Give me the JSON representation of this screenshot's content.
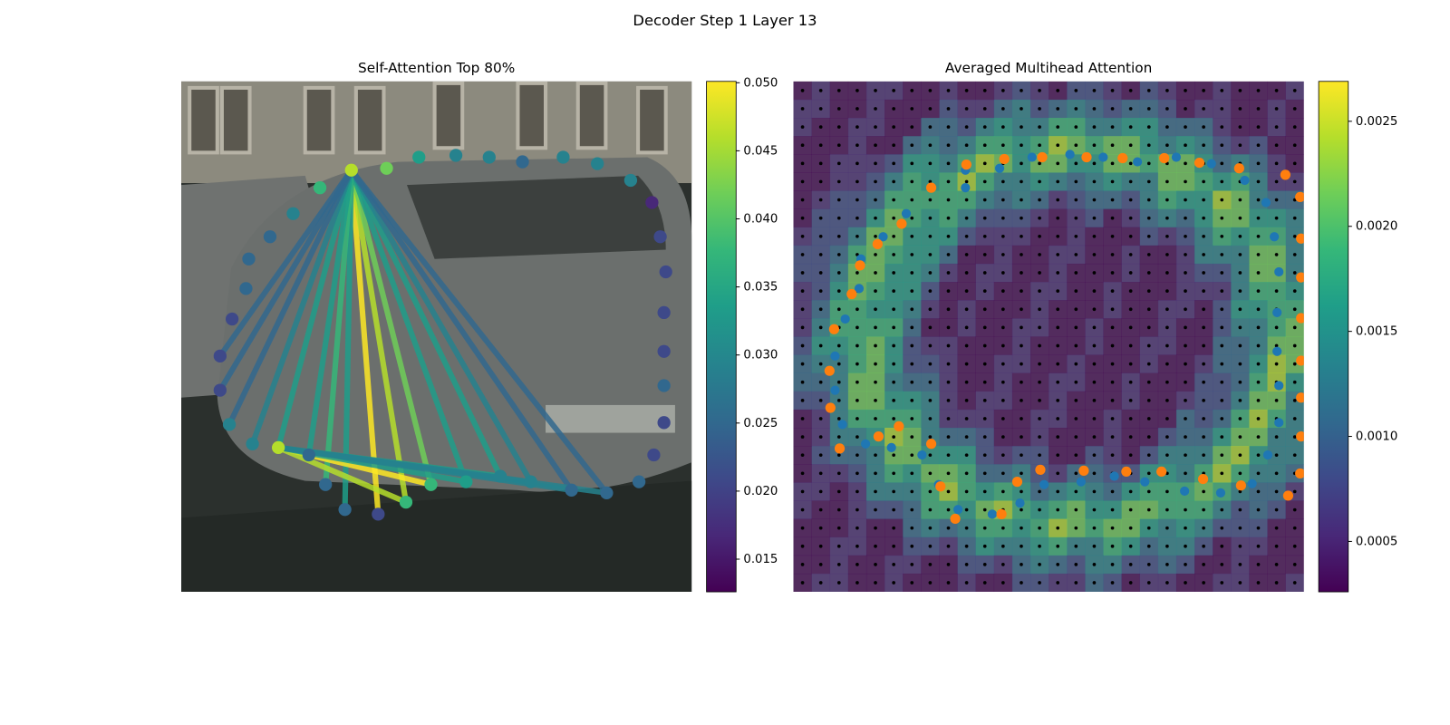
{
  "title": "Decoder Step 1 Layer 13",
  "chart_data": [
    {
      "type": "image",
      "title": "Self-Attention Top 80%",
      "colorbar": {
        "ylim": [
          0.0126,
          0.0501
        ],
        "yticks": [
          {
            "value": 0.015,
            "label": "0.015"
          },
          {
            "value": 0.02,
            "label": "0.020"
          },
          {
            "value": 0.025,
            "label": "0.025"
          },
          {
            "value": 0.03,
            "label": "0.030"
          },
          {
            "value": 0.035,
            "label": "0.035"
          },
          {
            "value": 0.04,
            "label": "0.040"
          },
          {
            "value": 0.045,
            "label": "0.045"
          },
          {
            "value": 0.05,
            "label": "0.050"
          }
        ]
      }
    },
    {
      "type": "image",
      "title": "Averaged Multihead Attention",
      "colorbar": {
        "ylim": [
          0.00026,
          0.00269
        ],
        "yticks": [
          {
            "value": 0.0005,
            "label": "0.0005"
          },
          {
            "value": 0.001,
            "label": "0.0010"
          },
          {
            "value": 0.0015,
            "label": "0.0015"
          },
          {
            "value": 0.002,
            "label": "0.0020"
          },
          {
            "value": 0.0025,
            "label": "0.0025"
          }
        ]
      }
    }
  ]
}
